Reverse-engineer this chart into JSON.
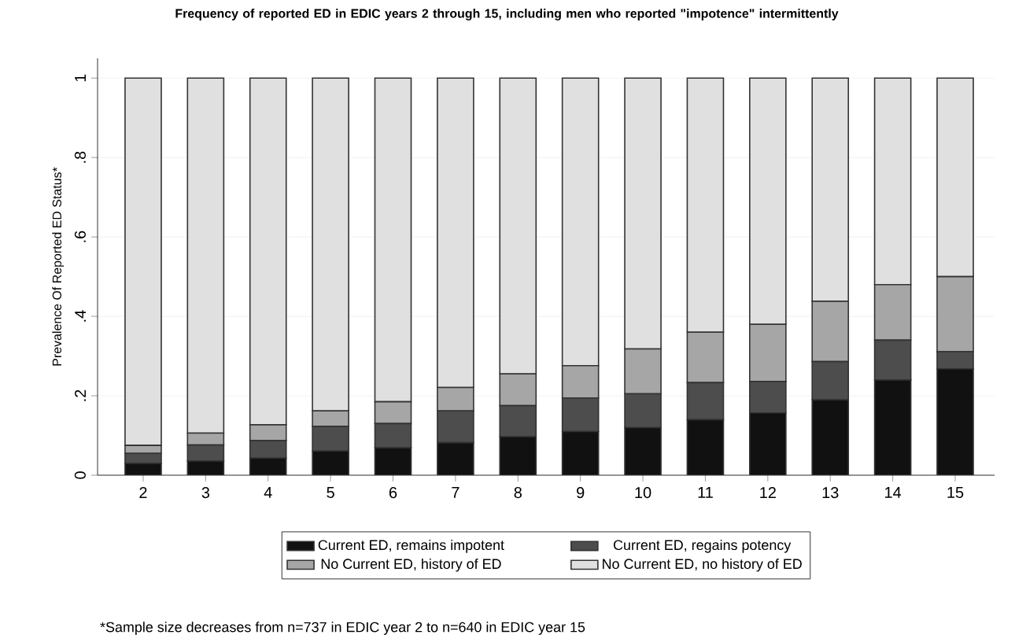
{
  "chart_data": {
    "type": "bar",
    "stacked": true,
    "title": "Frequency of reported ED in EDIC years 2 through 15, including men who reported \"impotence\" intermittently",
    "ylabel": "Prevalence Of Reported ED Status*",
    "categories": [
      "2",
      "3",
      "4",
      "5",
      "6",
      "7",
      "8",
      "9",
      "10",
      "11",
      "12",
      "13",
      "14",
      "15"
    ],
    "series": [
      {
        "name": "Current ED, remains impotent",
        "color": "#111111",
        "values": [
          0.03,
          0.036,
          0.043,
          0.061,
          0.069,
          0.082,
          0.097,
          0.11,
          0.12,
          0.14,
          0.157,
          0.19,
          0.24,
          0.268
        ]
      },
      {
        "name": "Current ED, regains potency",
        "color": "#4d4d4d",
        "values": [
          0.025,
          0.04,
          0.044,
          0.062,
          0.061,
          0.08,
          0.078,
          0.084,
          0.085,
          0.093,
          0.079,
          0.096,
          0.1,
          0.043
        ]
      },
      {
        "name": "No Current ED, history of ED",
        "color": "#a6a6a6",
        "values": [
          0.02,
          0.03,
          0.04,
          0.039,
          0.055,
          0.059,
          0.08,
          0.082,
          0.113,
          0.127,
          0.144,
          0.152,
          0.14,
          0.189
        ]
      },
      {
        "name": "No Current ED, no history of ED",
        "color": "#e0e0e0",
        "values": [
          0.925,
          0.894,
          0.873,
          0.838,
          0.815,
          0.779,
          0.745,
          0.724,
          0.682,
          0.64,
          0.62,
          0.562,
          0.52,
          0.5
        ]
      }
    ],
    "ylim": [
      0,
      1.05
    ],
    "yticks": [
      0,
      {
        "value": 0.2,
        "label": ".2"
      },
      {
        "value": 0.4,
        "label": ".4"
      },
      {
        "value": 0.6,
        "label": ".6"
      },
      {
        "value": 0.8,
        "label": ".8"
      },
      1
    ],
    "grid": "y",
    "legend": "bottom",
    "annotations": [
      "*Sample size decreases from n=737 in EDIC year 2 to n=640 in EDIC year 15"
    ]
  }
}
